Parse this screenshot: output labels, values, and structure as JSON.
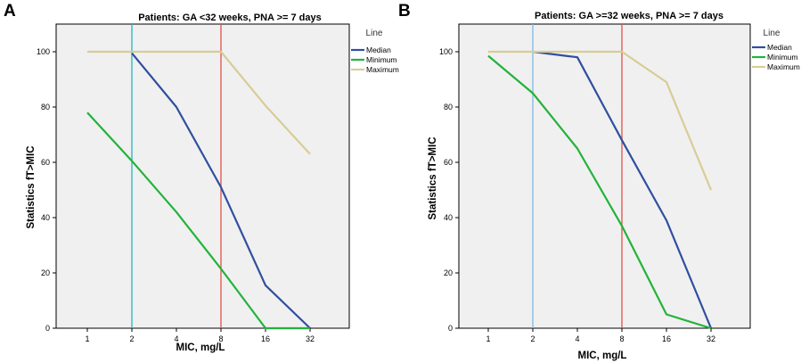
{
  "chart_data": [
    {
      "type": "line",
      "panel": "A",
      "title": "Patients: GA <32 weeks, PNA >= 7 days",
      "xlabel": "MIC, mg/L",
      "ylabel": "Statistics fT>MIC",
      "x_scale": "categorical",
      "categories": [
        "1",
        "2",
        "4",
        "8",
        "16",
        "32"
      ],
      "ylim": [
        0,
        110
      ],
      "yticks": [
        "0",
        "20",
        "40",
        "60",
        "80",
        "100"
      ],
      "legend_title": "Line",
      "legend_position": "right",
      "series": [
        {
          "name": "Median",
          "color": "#2f4f9f",
          "values": [
            null,
            99.5,
            80,
            51,
            15.5,
            0
          ]
        },
        {
          "name": "Minimum",
          "color": "#22b33a",
          "values": [
            78,
            60.5,
            42,
            21.5,
            0,
            0
          ]
        },
        {
          "name": "Maximum",
          "color": "#d8cc96",
          "values": [
            100,
            100,
            100,
            100,
            80.5,
            63
          ]
        }
      ],
      "reference_lines": [
        {
          "x": "2",
          "color": "#22b5b8"
        },
        {
          "x": "8",
          "color": "#e0504a"
        }
      ],
      "grid": false
    },
    {
      "type": "line",
      "panel": "B",
      "title": "Patients: GA >=32 weeks, PNA >= 7 days",
      "xlabel": "MIC, mg/L",
      "ylabel": "Statistics fT>MIC",
      "x_scale": "categorical",
      "categories": [
        "1",
        "2",
        "4",
        "8",
        "16",
        "32"
      ],
      "ylim": [
        0,
        110
      ],
      "yticks": [
        "0",
        "20",
        "40",
        "60",
        "80",
        "100"
      ],
      "legend_title": "Line",
      "legend_position": "right",
      "series": [
        {
          "name": "Median",
          "color": "#2f4f9f",
          "values": [
            null,
            100,
            98,
            68,
            39,
            0
          ]
        },
        {
          "name": "Minimum",
          "color": "#22b33a",
          "values": [
            98.5,
            85,
            65,
            37,
            5,
            0
          ]
        },
        {
          "name": "Maximum",
          "color": "#d8cc96",
          "values": [
            100,
            100,
            100,
            100,
            89,
            50
          ]
        }
      ],
      "reference_lines": [
        {
          "x": "2",
          "color": "#7fb8e0"
        },
        {
          "x": "8",
          "color": "#e0504a"
        }
      ],
      "grid": false
    }
  ]
}
